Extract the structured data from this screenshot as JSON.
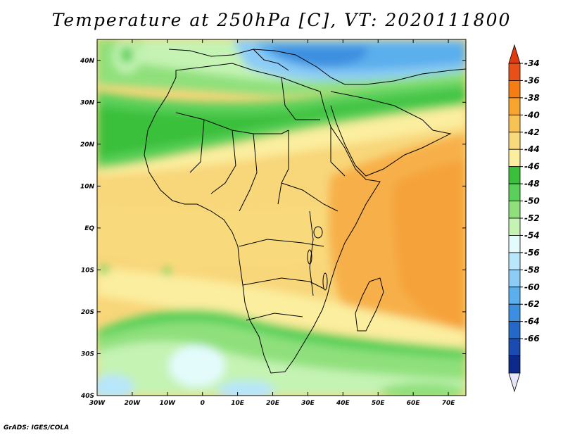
{
  "title": "Temperature at 250hPa [C], VT: 2020111800",
  "credit": "GrADS: IGES/COLA",
  "map": {
    "lon_ticks": [
      "30W",
      "20W",
      "10W",
      "0",
      "10E",
      "20E",
      "30E",
      "40E",
      "50E",
      "60E",
      "70E"
    ],
    "lat_ticks": [
      "40N",
      "30N",
      "20N",
      "10N",
      "EQ",
      "10S",
      "20S",
      "30S",
      "40S"
    ],
    "lon_range": [
      -30,
      75
    ],
    "lat_range": [
      -40,
      45
    ]
  },
  "colorbar": {
    "labels": [
      "-34",
      "-36",
      "-38",
      "-40",
      "-42",
      "-44",
      "-46",
      "-48",
      "-50",
      "-52",
      "-54",
      "-56",
      "-58",
      "-60",
      "-62",
      "-64",
      "-66"
    ],
    "colors": [
      "#e8501a",
      "#f67d14",
      "#f7a52f",
      "#f7c356",
      "#f8da7c",
      "#fbee9f",
      "#3ac03a",
      "#5ad05a",
      "#8fe07c",
      "#c4f3b4",
      "#e3fbfb",
      "#b8e6fa",
      "#8cccf6",
      "#5aafec",
      "#3c8fe0",
      "#2468c8",
      "#1a4bb0",
      "#0d2a8a"
    ],
    "top_arrow_color": "#e03a10",
    "bottom_arrow_color": "#e6e6fa"
  }
}
